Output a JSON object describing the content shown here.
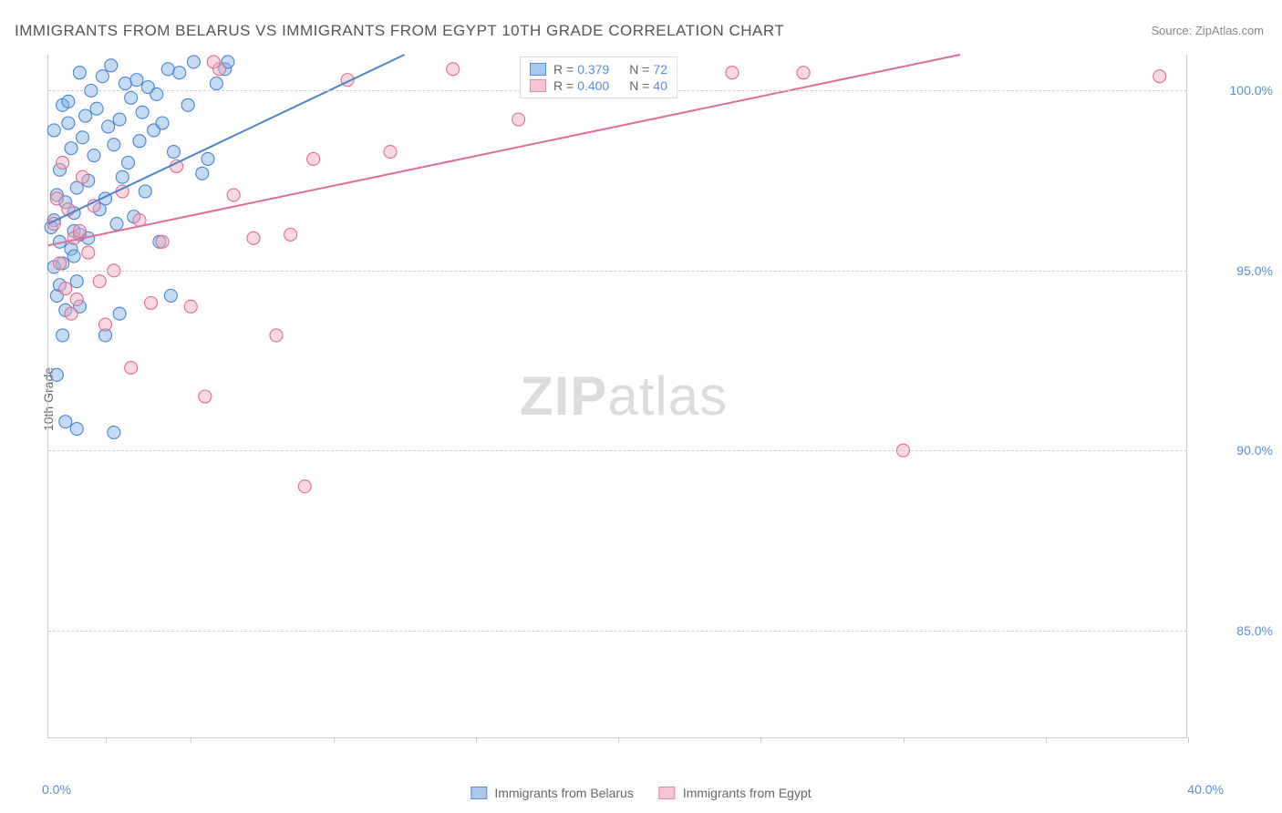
{
  "title": "IMMIGRANTS FROM BELARUS VS IMMIGRANTS FROM EGYPT 10TH GRADE CORRELATION CHART",
  "source": "Source: ZipAtlas.com",
  "ylabel": "10th Grade",
  "watermark_bold": "ZIP",
  "watermark_rest": "atlas",
  "chart": {
    "type": "scatter",
    "xlim": [
      0,
      40
    ],
    "ylim": [
      82,
      101
    ],
    "ytick_values": [
      85,
      90,
      95,
      100
    ],
    "ytick_labels": [
      "85.0%",
      "90.0%",
      "95.0%",
      "100.0%"
    ],
    "xtick_values": [
      0,
      40
    ],
    "xtick_minor_values": [
      2,
      5,
      10,
      15,
      20,
      25,
      30,
      35,
      40
    ],
    "xtick_labels": [
      "0.0%",
      "40.0%"
    ],
    "background_color": "#ffffff",
    "grid_color": "#d0d0d0",
    "axis_label_color": "#5b8dd6",
    "marker_radius": 7,
    "marker_opacity": 0.45,
    "series": [
      {
        "name": "Immigrants from Belarus",
        "fill_color": "#7ab0e8",
        "stroke_color": "#4a86c9",
        "r_value": "0.379",
        "n_value": "72",
        "trend": {
          "x1": 0,
          "y1": 96.3,
          "x2": 12.5,
          "y2": 101
        },
        "points": [
          [
            0.2,
            96.4
          ],
          [
            0.3,
            97.1
          ],
          [
            0.4,
            95.8
          ],
          [
            0.2,
            98.9
          ],
          [
            0.5,
            99.6
          ],
          [
            0.3,
            94.3
          ],
          [
            0.6,
            96.9
          ],
          [
            0.4,
            97.8
          ],
          [
            0.7,
            99.1
          ],
          [
            0.5,
            95.2
          ],
          [
            0.8,
            98.4
          ],
          [
            0.6,
            93.9
          ],
          [
            0.9,
            96.6
          ],
          [
            0.7,
            99.7
          ],
          [
            1.0,
            97.3
          ],
          [
            0.8,
            95.6
          ],
          [
            1.1,
            100.5
          ],
          [
            0.9,
            96.1
          ],
          [
            1.2,
            98.7
          ],
          [
            1.0,
            94.7
          ],
          [
            1.3,
            99.3
          ],
          [
            1.1,
            96.0
          ],
          [
            1.4,
            97.5
          ],
          [
            1.5,
            100.0
          ],
          [
            1.6,
            98.2
          ],
          [
            1.7,
            99.5
          ],
          [
            1.8,
            96.7
          ],
          [
            1.9,
            100.4
          ],
          [
            2.0,
            97.0
          ],
          [
            2.1,
            99.0
          ],
          [
            2.2,
            100.7
          ],
          [
            2.3,
            98.5
          ],
          [
            2.4,
            96.3
          ],
          [
            2.5,
            99.2
          ],
          [
            2.6,
            97.6
          ],
          [
            2.7,
            100.2
          ],
          [
            2.8,
            98.0
          ],
          [
            2.9,
            99.8
          ],
          [
            3.0,
            96.5
          ],
          [
            3.1,
            100.3
          ],
          [
            3.2,
            98.6
          ],
          [
            3.3,
            99.4
          ],
          [
            3.4,
            97.2
          ],
          [
            3.5,
            100.1
          ],
          [
            3.7,
            98.9
          ],
          [
            3.8,
            99.9
          ],
          [
            4.0,
            99.1
          ],
          [
            4.2,
            100.6
          ],
          [
            4.4,
            98.3
          ],
          [
            4.6,
            100.5
          ],
          [
            4.9,
            99.6
          ],
          [
            5.1,
            100.8
          ],
          [
            5.4,
            97.7
          ],
          [
            5.6,
            98.1
          ],
          [
            5.9,
            100.2
          ],
          [
            6.2,
            100.6
          ],
          [
            0.6,
            90.8
          ],
          [
            1.0,
            90.6
          ],
          [
            2.3,
            90.5
          ],
          [
            0.3,
            92.1
          ],
          [
            0.5,
            93.2
          ],
          [
            2.0,
            93.2
          ],
          [
            2.5,
            93.8
          ],
          [
            1.1,
            94.0
          ],
          [
            1.4,
            95.9
          ],
          [
            0.4,
            94.6
          ],
          [
            0.1,
            96.2
          ],
          [
            0.9,
            95.4
          ],
          [
            3.9,
            95.8
          ],
          [
            4.3,
            94.3
          ],
          [
            0.2,
            95.1
          ],
          [
            6.3,
            100.8
          ]
        ]
      },
      {
        "name": "Immigrants from Egypt",
        "fill_color": "#f5a9bf",
        "stroke_color": "#e06d91",
        "r_value": "0.400",
        "n_value": "40",
        "trend": {
          "x1": 0,
          "y1": 95.7,
          "x2": 32,
          "y2": 101
        },
        "points": [
          [
            0.2,
            96.3
          ],
          [
            0.3,
            97.0
          ],
          [
            0.4,
            95.2
          ],
          [
            0.5,
            98.0
          ],
          [
            0.6,
            94.5
          ],
          [
            0.7,
            96.7
          ],
          [
            0.8,
            93.8
          ],
          [
            0.9,
            95.9
          ],
          [
            1.0,
            94.2
          ],
          [
            1.1,
            96.1
          ],
          [
            1.2,
            97.6
          ],
          [
            1.4,
            95.5
          ],
          [
            1.6,
            96.8
          ],
          [
            1.8,
            94.7
          ],
          [
            2.0,
            93.5
          ],
          [
            2.3,
            95.0
          ],
          [
            2.6,
            97.2
          ],
          [
            2.9,
            92.3
          ],
          [
            3.2,
            96.4
          ],
          [
            3.6,
            94.1
          ],
          [
            4.0,
            95.8
          ],
          [
            4.5,
            97.9
          ],
          [
            5.0,
            94.0
          ],
          [
            5.5,
            91.5
          ],
          [
            6.0,
            100.6
          ],
          [
            6.5,
            97.1
          ],
          [
            7.2,
            95.9
          ],
          [
            8.0,
            93.2
          ],
          [
            8.5,
            96.0
          ],
          [
            9.3,
            98.1
          ],
          [
            9.0,
            89.0
          ],
          [
            10.5,
            100.3
          ],
          [
            12.0,
            98.3
          ],
          [
            14.2,
            100.6
          ],
          [
            16.5,
            99.2
          ],
          [
            24.0,
            100.5
          ],
          [
            26.5,
            100.5
          ],
          [
            30.0,
            90.0
          ],
          [
            39.0,
            100.4
          ],
          [
            5.8,
            100.8
          ]
        ]
      }
    ]
  },
  "legend_bottom": [
    {
      "label": "Immigrants from Belarus",
      "fill": "#a7c9ec",
      "stroke": "#5b8dd6"
    },
    {
      "label": "Immigrants from Egypt",
      "fill": "#f7c4d3",
      "stroke": "#e58aaa"
    }
  ],
  "legend_top": [
    {
      "fill": "#a7c9ec",
      "stroke": "#5b8dd6",
      "r": "0.379",
      "n": "72"
    },
    {
      "fill": "#f7c4d3",
      "stroke": "#e58aaa",
      "r": "0.400",
      "n": "40"
    }
  ]
}
